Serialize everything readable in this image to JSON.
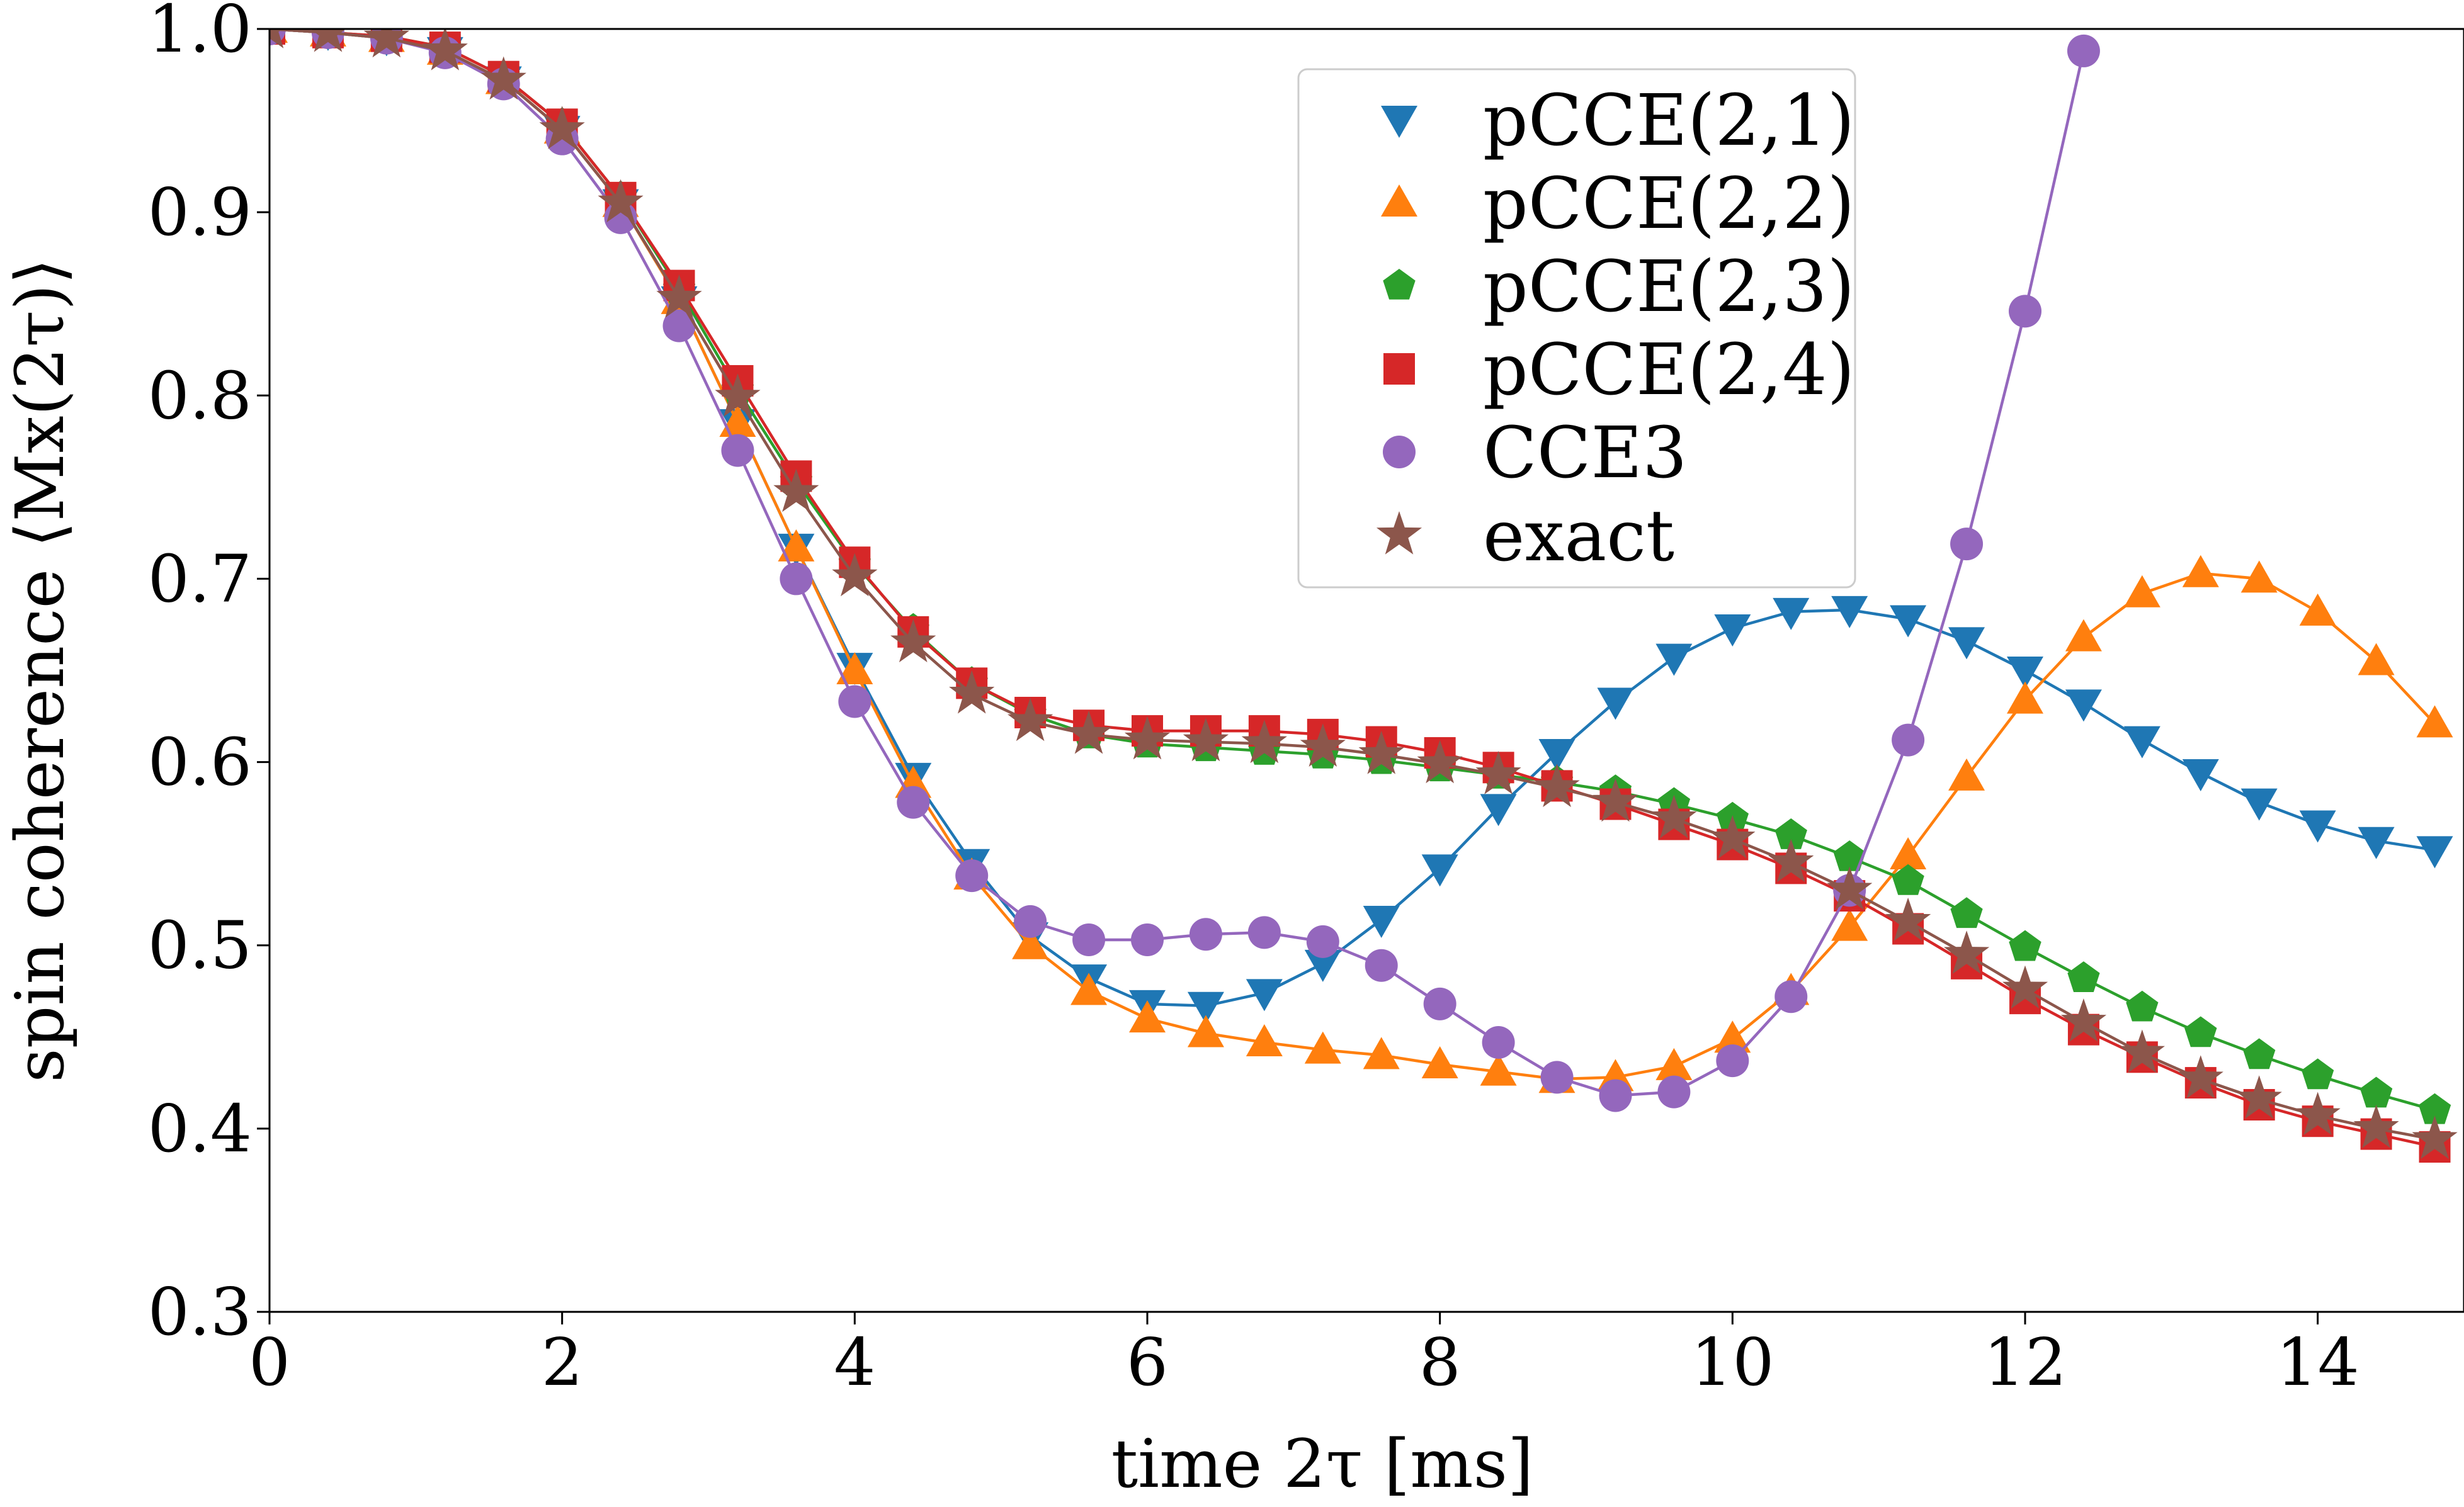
{
  "chart_data": {
    "type": "line",
    "title": "",
    "xlabel": "time 2τ [ms]",
    "ylabel": "spin coherence ⟨Mx(2τ)⟩",
    "xlim": [
      0,
      15
    ],
    "ylim": [
      0.3,
      1.0
    ],
    "xticks": [
      "0",
      "2",
      "4",
      "6",
      "8",
      "10",
      "12",
      "14"
    ],
    "yticks": [
      "0.3",
      "0.4",
      "0.5",
      "0.6",
      "0.7",
      "0.8",
      "0.9",
      "1.0"
    ],
    "grid": false,
    "legend_position": "top-right",
    "series": [
      {
        "name": "pCCE(2,1)",
        "marker": "triangle-down",
        "color": "#1f77b4",
        "x": [
          0,
          0.4,
          0.8,
          1.2,
          1.6,
          2.0,
          2.4,
          2.8,
          3.2,
          3.6,
          4.0,
          4.4,
          4.8,
          5.2,
          5.6,
          6.0,
          6.4,
          6.8,
          7.2,
          7.6,
          8.0,
          8.4,
          8.8,
          9.2,
          9.6,
          10.0,
          10.4,
          10.8,
          11.2,
          11.6,
          12.0,
          12.4,
          12.8,
          13.2,
          13.6,
          14.0,
          14.4,
          14.8
        ],
        "y": [
          1.0,
          0.998,
          0.995,
          0.988,
          0.972,
          0.945,
          0.905,
          0.852,
          0.785,
          0.717,
          0.652,
          0.592,
          0.545,
          0.505,
          0.482,
          0.468,
          0.467,
          0.474,
          0.49,
          0.514,
          0.542,
          0.575,
          0.605,
          0.633,
          0.657,
          0.673,
          0.682,
          0.683,
          0.678,
          0.666,
          0.65,
          0.632,
          0.612,
          0.594,
          0.578,
          0.566,
          0.557,
          0.552
        ]
      },
      {
        "name": "pCCE(2,2)",
        "marker": "triangle-up",
        "color": "#ff7f0e",
        "x": [
          0,
          0.4,
          0.8,
          1.2,
          1.6,
          2.0,
          2.4,
          2.8,
          3.2,
          3.6,
          4.0,
          4.4,
          4.8,
          5.2,
          5.6,
          6.0,
          6.4,
          6.8,
          7.2,
          7.6,
          8.0,
          8.4,
          8.8,
          9.2,
          9.6,
          10.0,
          10.4,
          10.8,
          11.2,
          11.6,
          12.0,
          12.4,
          12.8,
          13.2,
          13.6,
          14.0,
          14.4,
          14.8
        ],
        "y": [
          1.0,
          0.998,
          0.995,
          0.988,
          0.972,
          0.945,
          0.905,
          0.852,
          0.785,
          0.717,
          0.65,
          0.588,
          0.538,
          0.5,
          0.475,
          0.46,
          0.452,
          0.447,
          0.443,
          0.44,
          0.435,
          0.431,
          0.427,
          0.428,
          0.434,
          0.449,
          0.475,
          0.51,
          0.549,
          0.592,
          0.634,
          0.668,
          0.692,
          0.703,
          0.7,
          0.682,
          0.655,
          0.621
        ]
      },
      {
        "name": "pCCE(2,3)",
        "marker": "pentagon",
        "color": "#2ca02c",
        "x": [
          0,
          0.4,
          0.8,
          1.2,
          1.6,
          2.0,
          2.4,
          2.8,
          3.2,
          3.6,
          4.0,
          4.4,
          4.8,
          5.2,
          5.6,
          6.0,
          6.4,
          6.8,
          7.2,
          7.6,
          8.0,
          8.4,
          8.8,
          9.2,
          9.6,
          10.0,
          10.4,
          10.8,
          11.2,
          11.6,
          12.0,
          12.4,
          12.8,
          13.2,
          13.6,
          14.0,
          14.4,
          14.8
        ],
        "y": [
          1.0,
          0.998,
          0.996,
          0.99,
          0.974,
          0.948,
          0.908,
          0.858,
          0.803,
          0.753,
          0.708,
          0.672,
          0.643,
          0.626,
          0.615,
          0.61,
          0.608,
          0.606,
          0.604,
          0.601,
          0.597,
          0.593,
          0.589,
          0.584,
          0.577,
          0.569,
          0.56,
          0.548,
          0.535,
          0.517,
          0.499,
          0.482,
          0.466,
          0.452,
          0.44,
          0.429,
          0.419,
          0.41
        ]
      },
      {
        "name": "pCCE(2,4)",
        "marker": "square",
        "color": "#d62728",
        "x": [
          0,
          0.4,
          0.8,
          1.2,
          1.6,
          2.0,
          2.4,
          2.8,
          3.2,
          3.6,
          4.0,
          4.4,
          4.8,
          5.2,
          5.6,
          6.0,
          6.4,
          6.8,
          7.2,
          7.6,
          8.0,
          8.4,
          8.8,
          9.2,
          9.6,
          10.0,
          10.4,
          10.8,
          11.2,
          11.6,
          12.0,
          12.4,
          12.8,
          13.2,
          13.6,
          14.0,
          14.4,
          14.8
        ],
        "y": [
          1.0,
          0.998,
          0.996,
          0.99,
          0.974,
          0.948,
          0.908,
          0.86,
          0.808,
          0.756,
          0.709,
          0.671,
          0.643,
          0.627,
          0.62,
          0.617,
          0.617,
          0.617,
          0.615,
          0.611,
          0.605,
          0.597,
          0.587,
          0.577,
          0.566,
          0.555,
          0.542,
          0.527,
          0.509,
          0.49,
          0.471,
          0.454,
          0.439,
          0.425,
          0.413,
          0.404,
          0.397,
          0.39
        ]
      },
      {
        "name": "CCE3",
        "marker": "circle",
        "color": "#9467bd",
        "x": [
          0,
          0.4,
          0.8,
          1.2,
          1.6,
          2.0,
          2.4,
          2.8,
          3.2,
          3.6,
          4.0,
          4.4,
          4.8,
          5.2,
          5.6,
          6.0,
          6.4,
          6.8,
          7.2,
          7.6,
          8.0,
          8.4,
          8.8,
          9.2,
          9.6,
          10.0,
          10.4,
          10.8,
          11.2,
          11.6,
          12.0,
          12.4
        ],
        "y": [
          1.0,
          0.998,
          0.995,
          0.987,
          0.97,
          0.94,
          0.897,
          0.838,
          0.77,
          0.7,
          0.633,
          0.578,
          0.538,
          0.513,
          0.503,
          0.503,
          0.506,
          0.507,
          0.502,
          0.489,
          0.468,
          0.447,
          0.428,
          0.418,
          0.42,
          0.437,
          0.472,
          0.53,
          0.612,
          0.719,
          0.846,
          0.988
        ]
      },
      {
        "name": "exact",
        "marker": "star",
        "color": "#8c564b",
        "x": [
          0,
          0.4,
          0.8,
          1.2,
          1.6,
          2.0,
          2.4,
          2.8,
          3.2,
          3.6,
          4.0,
          4.4,
          4.8,
          5.2,
          5.6,
          6.0,
          6.4,
          6.8,
          7.2,
          7.6,
          8.0,
          8.4,
          8.8,
          9.2,
          9.6,
          10.0,
          10.4,
          10.8,
          11.2,
          11.6,
          12.0,
          12.4,
          12.8,
          13.2,
          13.6,
          14.0,
          14.4,
          14.8
        ],
        "y": [
          1.0,
          0.998,
          0.995,
          0.988,
          0.972,
          0.945,
          0.905,
          0.853,
          0.799,
          0.747,
          0.701,
          0.665,
          0.637,
          0.622,
          0.615,
          0.612,
          0.611,
          0.61,
          0.608,
          0.604,
          0.599,
          0.593,
          0.586,
          0.578,
          0.569,
          0.558,
          0.545,
          0.53,
          0.513,
          0.495,
          0.476,
          0.458,
          0.441,
          0.427,
          0.416,
          0.407,
          0.4,
          0.394
        ]
      }
    ]
  }
}
